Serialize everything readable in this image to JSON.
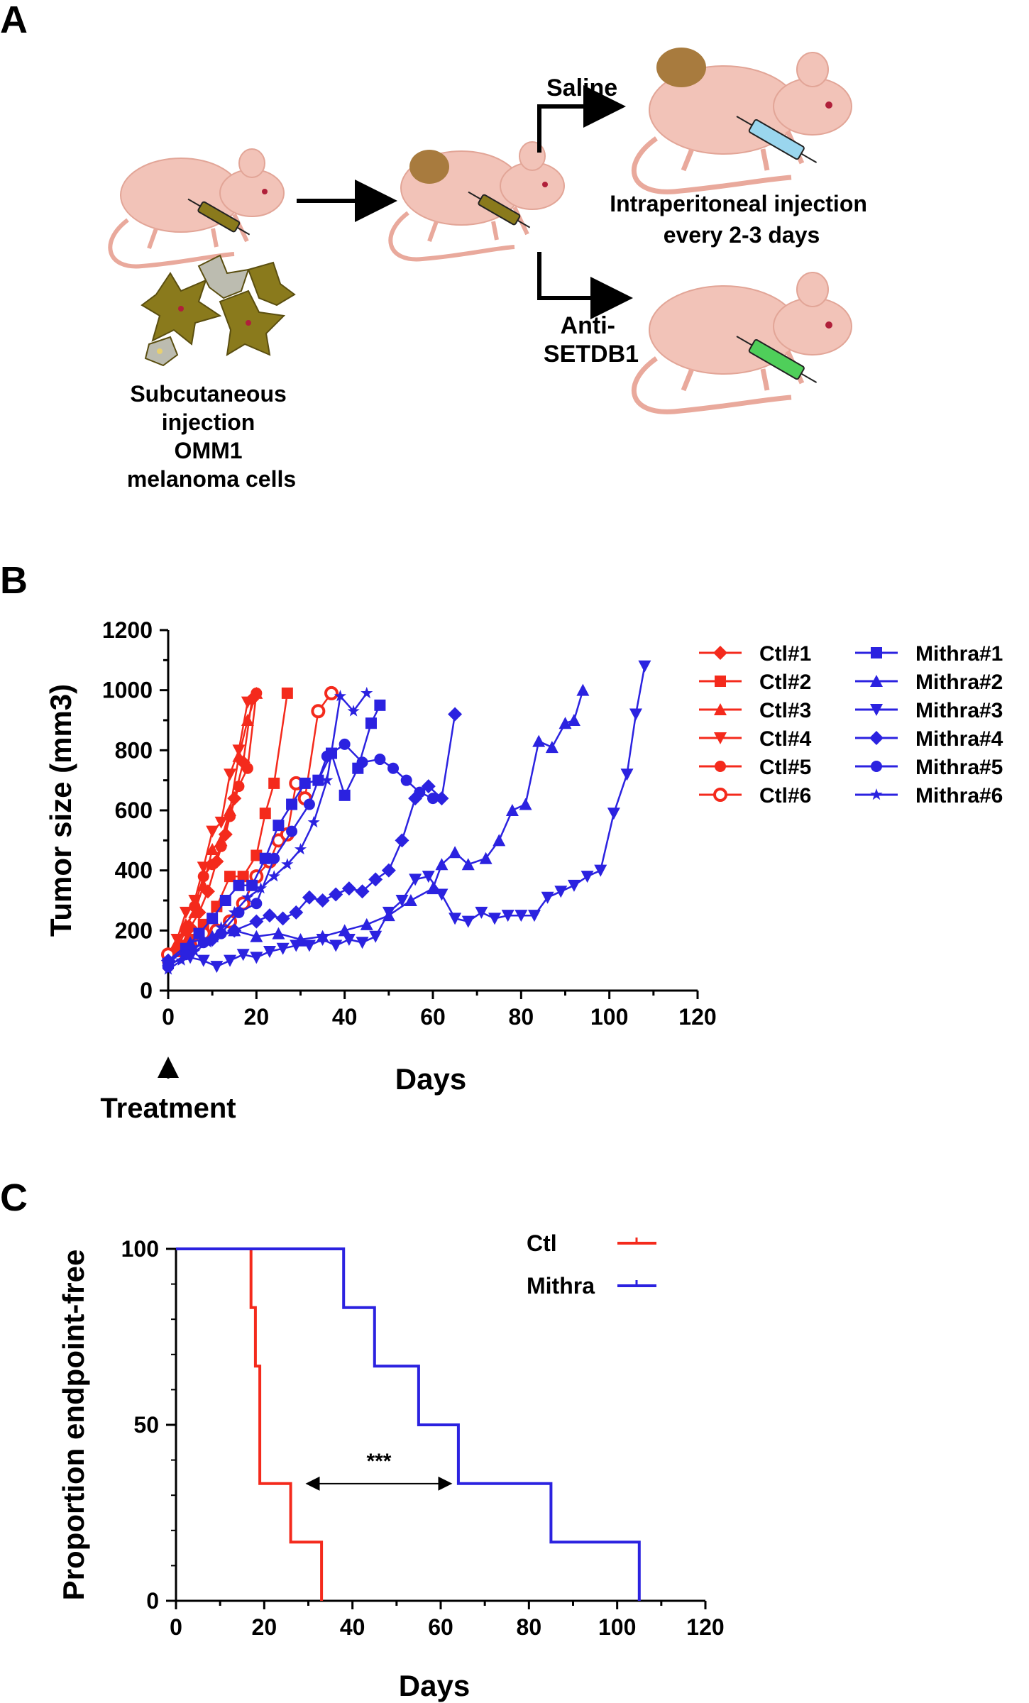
{
  "panel_a": {
    "letter": "A",
    "branch_top_label": "Saline",
    "branch_bottom_label": "Anti-\nSETDB1",
    "ip_caption": "Intraperitoneal injection\nevery 2-3 days",
    "sc_caption": "Subcutaneous\ninjection\nOMM1\nmelanoma cells",
    "colors": {
      "mouse": "#f2c3b8",
      "tumor": "#a87b3e",
      "cells": "#8a7a1c",
      "saline": "#9ad6ee",
      "drug": "#4fcf5a"
    }
  },
  "chart_data": [
    {
      "panel": "B",
      "type": "line",
      "xlabel": "Days",
      "ylabel": "Tumor size (mm3)",
      "xlim": [
        0,
        120
      ],
      "ylim": [
        0,
        1200
      ],
      "xticks": [
        0,
        20,
        40,
        60,
        80,
        100,
        120
      ],
      "yticks": [
        0,
        200,
        400,
        600,
        800,
        1000,
        1200
      ],
      "annotation": "Treatment",
      "legend_placement": "right",
      "series": [
        {
          "name": "Ctl#1",
          "color": "#f42a1c",
          "marker": "diamond",
          "x": [
            0,
            3,
            5,
            7,
            9,
            11,
            13,
            15,
            17,
            19
          ],
          "y": [
            100,
            150,
            210,
            260,
            330,
            430,
            520,
            640,
            760,
            970
          ]
        },
        {
          "name": "Ctl#2",
          "color": "#f42a1c",
          "marker": "square",
          "x": [
            0,
            3,
            5,
            8,
            11,
            14,
            17,
            20,
            22,
            24,
            27
          ],
          "y": [
            90,
            130,
            170,
            220,
            280,
            380,
            380,
            450,
            590,
            690,
            990
          ]
        },
        {
          "name": "Ctl#3",
          "color": "#f42a1c",
          "marker": "triangle-up",
          "x": [
            0,
            2,
            4,
            6,
            8,
            10,
            12,
            14,
            16,
            18,
            20
          ],
          "y": [
            110,
            160,
            220,
            260,
            350,
            470,
            500,
            600,
            780,
            900,
            990
          ]
        },
        {
          "name": "Ctl#4",
          "color": "#f42a1c",
          "marker": "triangle-down",
          "x": [
            0,
            2,
            4,
            6,
            8,
            10,
            12,
            14,
            16,
            18
          ],
          "y": [
            100,
            170,
            260,
            300,
            410,
            530,
            560,
            720,
            800,
            960
          ]
        },
        {
          "name": "Ctl#5",
          "color": "#f42a1c",
          "marker": "circle",
          "x": [
            0,
            2,
            4,
            6,
            8,
            10,
            12,
            14,
            16,
            18,
            20
          ],
          "y": [
            80,
            140,
            200,
            280,
            380,
            420,
            480,
            580,
            680,
            740,
            990
          ]
        },
        {
          "name": "Ctl#6",
          "color": "#f42a1c",
          "marker": "circle-open",
          "x": [
            0,
            5,
            8,
            11,
            14,
            17,
            20,
            23,
            25,
            27,
            29,
            31,
            34,
            37
          ],
          "y": [
            120,
            150,
            190,
            200,
            230,
            290,
            380,
            430,
            500,
            520,
            690,
            640,
            930,
            990
          ]
        },
        {
          "name": "Mithra#1",
          "color": "#2b22e0",
          "marker": "square",
          "x": [
            0,
            4,
            7,
            10,
            13,
            16,
            19,
            22,
            25,
            28,
            31,
            34,
            37,
            40,
            43,
            46,
            48
          ],
          "y": [
            90,
            140,
            190,
            240,
            300,
            350,
            350,
            440,
            550,
            620,
            690,
            700,
            790,
            650,
            740,
            890,
            950
          ]
        },
        {
          "name": "Mithra#2",
          "color": "#2b22e0",
          "marker": "triangle-up",
          "x": [
            0,
            5,
            10,
            15,
            20,
            25,
            30,
            35,
            40,
            45,
            50,
            55,
            60,
            62,
            65,
            68,
            72,
            75,
            78,
            81,
            84,
            87,
            90,
            92,
            94
          ],
          "y": [
            100,
            160,
            180,
            200,
            180,
            190,
            170,
            180,
            200,
            220,
            250,
            300,
            340,
            420,
            460,
            420,
            440,
            500,
            600,
            620,
            830,
            810,
            890,
            900,
            1000
          ]
        },
        {
          "name": "Mithra#3",
          "color": "#2b22e0",
          "marker": "triangle-down",
          "x": [
            0,
            5,
            8,
            11,
            14,
            17,
            20,
            23,
            26,
            29,
            32,
            35,
            38,
            41,
            44,
            47,
            50,
            53,
            56,
            59,
            62,
            65,
            68,
            71,
            74,
            77,
            80,
            83,
            86,
            89,
            92,
            95,
            98,
            101,
            104,
            106,
            108
          ],
          "y": [
            90,
            110,
            100,
            80,
            100,
            120,
            110,
            130,
            140,
            150,
            150,
            170,
            150,
            170,
            160,
            180,
            260,
            300,
            370,
            380,
            320,
            240,
            230,
            260,
            240,
            250,
            250,
            250,
            310,
            330,
            350,
            380,
            400,
            590,
            720,
            920,
            1080
          ]
        },
        {
          "name": "Mithra#4",
          "color": "#2b22e0",
          "marker": "diamond",
          "x": [
            0,
            5,
            10,
            15,
            20,
            23,
            26,
            29,
            32,
            35,
            38,
            41,
            44,
            47,
            50,
            53,
            56,
            59,
            62,
            65
          ],
          "y": [
            100,
            140,
            170,
            200,
            230,
            250,
            240,
            260,
            310,
            300,
            320,
            340,
            330,
            370,
            400,
            500,
            640,
            680,
            640,
            920
          ]
        },
        {
          "name": "Mithra#5",
          "color": "#2b22e0",
          "marker": "circle",
          "x": [
            0,
            4,
            8,
            12,
            16,
            20,
            24,
            28,
            32,
            36,
            40,
            44,
            48,
            51,
            54,
            57,
            60
          ],
          "y": [
            80,
            120,
            160,
            190,
            260,
            290,
            440,
            530,
            620,
            780,
            820,
            760,
            770,
            740,
            700,
            660,
            640
          ]
        },
        {
          "name": "Mithra#6",
          "color": "#2b22e0",
          "marker": "star",
          "x": [
            0,
            3,
            6,
            9,
            12,
            15,
            18,
            21,
            24,
            27,
            30,
            33,
            36,
            39,
            42,
            45
          ],
          "y": [
            70,
            100,
            130,
            160,
            210,
            260,
            310,
            340,
            380,
            420,
            470,
            560,
            700,
            980,
            930,
            990
          ]
        }
      ]
    },
    {
      "panel": "C",
      "type": "line",
      "subtype": "kaplan-meier",
      "xlabel": "Days",
      "ylabel": "Proportion endpoint-free",
      "xlim": [
        0,
        120
      ],
      "ylim": [
        0,
        100
      ],
      "xticks": [
        0,
        20,
        40,
        60,
        80,
        100,
        120
      ],
      "yticks": [
        0,
        50,
        100
      ],
      "annotation": "***",
      "legend_placement": "top-right",
      "series": [
        {
          "name": "Ctl",
          "color": "#f42a1c",
          "x": [
            0,
            17,
            18,
            19,
            26,
            33
          ],
          "y": [
            100,
            83.3,
            66.7,
            33.3,
            16.7,
            0
          ]
        },
        {
          "name": "Mithra",
          "color": "#2b22e0",
          "x": [
            0,
            38,
            45,
            55,
            64,
            85,
            105
          ],
          "y": [
            100,
            83.3,
            66.7,
            50,
            33.3,
            16.7,
            0
          ]
        }
      ]
    }
  ]
}
